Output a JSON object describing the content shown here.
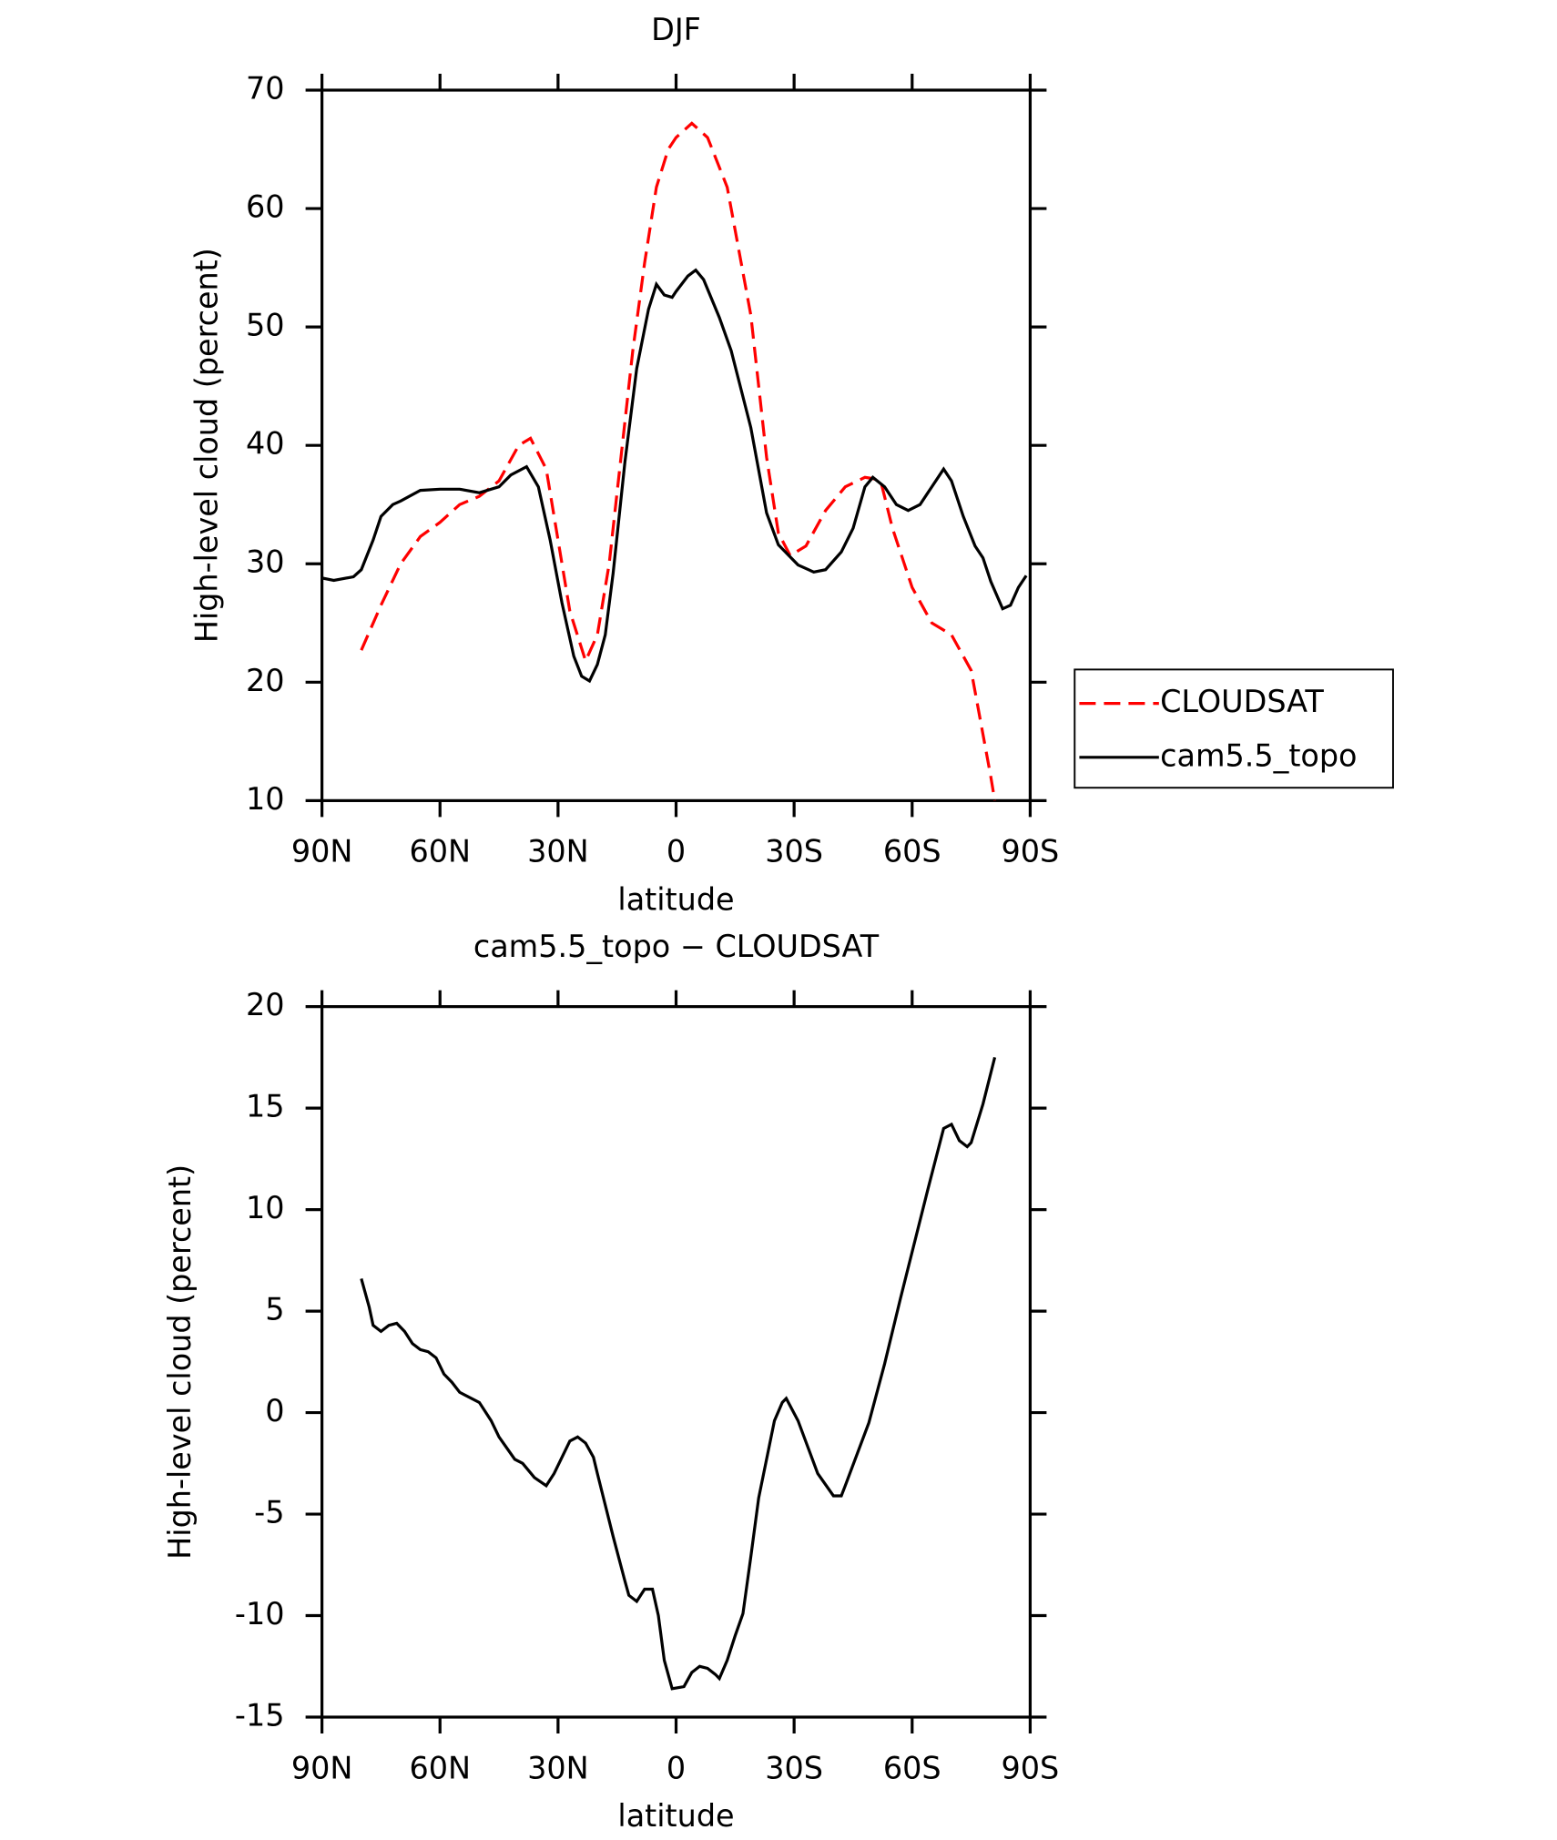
{
  "chart_data": [
    {
      "type": "line",
      "title": "DJF",
      "xlabel": "latitude",
      "ylabel": "High-level cloud (percent)",
      "xlim": [
        90,
        -90
      ],
      "xticks": [
        {
          "value": 90,
          "label": "90N"
        },
        {
          "value": 60,
          "label": "60N"
        },
        {
          "value": 30,
          "label": "30N"
        },
        0,
        {
          "value": -30,
          "label": "30S"
        },
        {
          "value": -60,
          "label": "60S"
        },
        {
          "value": -90,
          "label": "90S"
        }
      ],
      "ylim": [
        10,
        70
      ],
      "yticks": [
        10,
        20,
        30,
        40,
        50,
        60,
        70
      ],
      "legend": "right",
      "series": [
        {
          "name": "CLOUDSAT",
          "color": "#ff0000",
          "style": "dashed",
          "x": [
            80,
            75,
            70,
            65,
            60,
            55,
            50,
            45,
            40,
            37,
            33,
            30,
            27,
            23,
            20,
            17,
            14,
            11,
            8,
            5,
            2,
            0,
            -4,
            -8,
            -13,
            -19,
            -23,
            -26,
            -29,
            -33,
            -38,
            -43,
            -48,
            -50,
            -52,
            -55,
            -60,
            -65,
            -70,
            -75,
            -80,
            -81
          ],
          "values": [
            22.7,
            26.5,
            30,
            32.3,
            33.5,
            35,
            35.7,
            37,
            40,
            40.6,
            38,
            32,
            26,
            21.8,
            24,
            30,
            39,
            48,
            55.4,
            61.8,
            65,
            66,
            67.2,
            66,
            61.8,
            51,
            39,
            32.6,
            30.7,
            31.5,
            34.5,
            36.5,
            37.3,
            37.2,
            37,
            33,
            28,
            25,
            24,
            21,
            12,
            10
          ]
        },
        {
          "name": "cam5.5_topo",
          "color": "#000000",
          "style": "solid",
          "x": [
            90,
            87,
            82,
            80,
            77,
            75,
            72,
            70,
            65,
            60,
            55,
            50,
            45,
            42,
            38,
            35,
            32,
            29,
            26,
            24,
            22,
            20,
            18,
            16,
            13,
            10,
            7,
            5,
            3,
            1,
            0,
            -3,
            -5,
            -7,
            -11,
            -14,
            -19,
            -23,
            -26,
            -31,
            -35,
            -38,
            -42,
            -45,
            -48,
            -50,
            -53,
            -56,
            -59,
            -62,
            -65,
            -68,
            -70,
            -73,
            -76,
            -78,
            -80,
            -83,
            -85,
            -87,
            -89
          ],
          "values": [
            28.8,
            28.6,
            28.9,
            29.5,
            32,
            34,
            35,
            35.3,
            36.2,
            36.3,
            36.3,
            36,
            36.5,
            37.5,
            38.2,
            36.5,
            32,
            26.7,
            22.2,
            20.5,
            20.1,
            21.5,
            24,
            29.2,
            38.6,
            46.5,
            51.5,
            53.6,
            52.7,
            52.5,
            53,
            54.3,
            54.8,
            54,
            50.8,
            48,
            41.5,
            34.3,
            31.6,
            29.9,
            29.3,
            29.5,
            31,
            33,
            36.5,
            37.3,
            36.5,
            35,
            34.5,
            35,
            36.5,
            38,
            37,
            34,
            31.5,
            30.5,
            28.5,
            26.2,
            26.5,
            28,
            29
          ]
        }
      ]
    },
    {
      "type": "line",
      "title": "cam5.5_topo − CLOUDSAT",
      "xlabel": "latitude",
      "ylabel": "High-level cloud (percent)",
      "xlim": [
        90,
        -90
      ],
      "xticks": [
        {
          "value": 90,
          "label": "90N"
        },
        {
          "value": 60,
          "label": "60N"
        },
        {
          "value": 30,
          "label": "30N"
        },
        0,
        {
          "value": -30,
          "label": "30S"
        },
        {
          "value": -60,
          "label": "60S"
        },
        {
          "value": -90,
          "label": "90S"
        }
      ],
      "ylim": [
        -15,
        20
      ],
      "yticks": [
        -15,
        -10,
        -5,
        0,
        5,
        10,
        15,
        20
      ],
      "series": [
        {
          "color": "#000000",
          "style": "solid",
          "x": [
            80,
            78,
            77,
            75,
            73,
            71,
            69,
            67,
            65,
            63,
            61,
            59,
            57,
            55,
            50,
            47,
            45,
            41,
            39,
            36,
            33,
            31,
            27,
            25,
            23,
            21,
            20,
            16,
            13,
            12,
            10,
            8,
            6,
            4.5,
            3,
            1,
            -2,
            -4,
            -6,
            -8,
            -10,
            -11,
            -13,
            -15,
            -17,
            -19,
            -21,
            -23,
            -25,
            -27,
            -28,
            -31,
            -36,
            -40,
            -42,
            -43,
            -49,
            -53,
            -57,
            -64,
            -68,
            -70,
            -72,
            -74,
            -75,
            -78,
            -81
          ],
          "values": [
            6.6,
            5.2,
            4.3,
            4,
            4.3,
            4.4,
            4,
            3.4,
            3.1,
            3,
            2.7,
            1.9,
            1.5,
            1,
            0.5,
            -0.4,
            -1.2,
            -2.3,
            -2.5,
            -3.2,
            -3.6,
            -3,
            -1.4,
            -1.2,
            -1.5,
            -2.2,
            -3,
            -6.1,
            -8.3,
            -9,
            -9.3,
            -8.7,
            -8.7,
            -10,
            -12.2,
            -13.6,
            -13.5,
            -12.8,
            -12.5,
            -12.6,
            -12.9,
            -13.1,
            -12.2,
            -11,
            -9.9,
            -7.1,
            -4.2,
            -2.3,
            -0.4,
            0.5,
            0.7,
            -0.4,
            -3,
            -4.1,
            -4.1,
            -3.6,
            -0.5,
            2.4,
            5.6,
            11,
            14,
            14.2,
            13.4,
            13.1,
            13.3,
            15.2,
            17.5
          ]
        }
      ]
    }
  ]
}
